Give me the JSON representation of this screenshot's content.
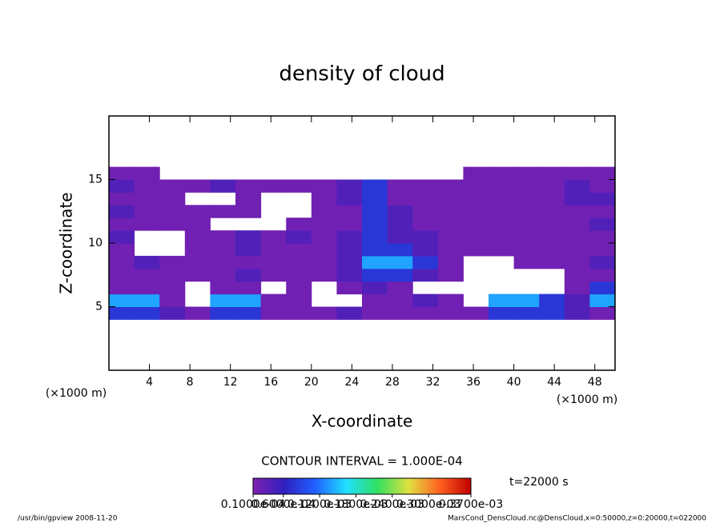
{
  "chart_data": {
    "type": "contour",
    "title": "density of cloud",
    "xlabel": "X-coordinate",
    "ylabel": "Z-coordinate",
    "xunit": "(×1000 m)",
    "xunit2": "(×1000 m)",
    "xlim": [
      0,
      50
    ],
    "ylim": [
      0,
      20
    ],
    "xticks": [
      4,
      8,
      12,
      16,
      20,
      24,
      28,
      32,
      36,
      40,
      44,
      48
    ],
    "yticks": [
      5,
      10,
      15
    ],
    "field": {
      "x": [
        1.25,
        3.75,
        6.25,
        8.75,
        11.25,
        13.75,
        16.25,
        18.75,
        21.25,
        23.75,
        26.25,
        28.75,
        31.25,
        33.75,
        36.25,
        38.75,
        41.25,
        43.75,
        46.25,
        48.75
      ],
      "z": [
        4.5,
        5.5,
        6.5,
        7.5,
        8.5,
        9.5,
        10.5,
        11.5,
        12.5,
        13.5,
        14.5,
        15.5
      ],
      "values": [
        [
          8e-05,
          8e-05,
          4e-05,
          2e-05,
          8e-05,
          8e-05,
          2e-05,
          2e-05,
          2e-05,
          4e-05,
          2e-05,
          2e-05,
          2e-05,
          2e-05,
          2e-05,
          8e-05,
          8e-05,
          8e-05,
          4e-05,
          2e-05
        ],
        [
          0.00014,
          0.00014,
          2e-05,
          null,
          0.00014,
          0.00014,
          2e-05,
          2e-05,
          null,
          null,
          2e-05,
          2e-05,
          4e-05,
          2e-05,
          null,
          0.00014,
          0.00014,
          8e-05,
          4e-05,
          0.00014
        ],
        [
          2e-05,
          2e-05,
          2e-05,
          null,
          2e-05,
          2e-05,
          null,
          2e-05,
          null,
          2e-05,
          4e-05,
          2e-05,
          null,
          null,
          null,
          null,
          null,
          null,
          2e-05,
          8e-05
        ],
        [
          2e-05,
          2e-05,
          2e-05,
          2e-05,
          2e-05,
          4e-05,
          2e-05,
          2e-05,
          2e-05,
          4e-05,
          8e-05,
          8e-05,
          4e-05,
          2e-05,
          null,
          null,
          null,
          null,
          2e-05,
          2e-05
        ],
        [
          2e-05,
          4e-05,
          2e-05,
          2e-05,
          2e-05,
          2e-05,
          2e-05,
          2e-05,
          2e-05,
          4e-05,
          0.00014,
          0.00014,
          8e-05,
          2e-05,
          null,
          null,
          2e-05,
          2e-05,
          2e-05,
          4e-05
        ],
        [
          2e-05,
          null,
          null,
          2e-05,
          2e-05,
          4e-05,
          2e-05,
          2e-05,
          2e-05,
          4e-05,
          8e-05,
          8e-05,
          4e-05,
          2e-05,
          2e-05,
          2e-05,
          2e-05,
          2e-05,
          2e-05,
          2e-05
        ],
        [
          4e-05,
          null,
          null,
          2e-05,
          2e-05,
          4e-05,
          2e-05,
          4e-05,
          2e-05,
          4e-05,
          8e-05,
          4e-05,
          4e-05,
          2e-05,
          2e-05,
          2e-05,
          2e-05,
          2e-05,
          2e-05,
          2e-05
        ],
        [
          2e-05,
          2e-05,
          2e-05,
          2e-05,
          null,
          null,
          null,
          2e-05,
          2e-05,
          2e-05,
          8e-05,
          4e-05,
          2e-05,
          2e-05,
          2e-05,
          2e-05,
          2e-05,
          2e-05,
          2e-05,
          4e-05
        ],
        [
          4e-05,
          2e-05,
          2e-05,
          2e-05,
          2e-05,
          2e-05,
          null,
          null,
          2e-05,
          2e-05,
          8e-05,
          4e-05,
          2e-05,
          2e-05,
          2e-05,
          2e-05,
          2e-05,
          2e-05,
          2e-05,
          2e-05
        ],
        [
          2e-05,
          2e-05,
          2e-05,
          null,
          null,
          2e-05,
          null,
          null,
          2e-05,
          4e-05,
          8e-05,
          2e-05,
          2e-05,
          2e-05,
          2e-05,
          2e-05,
          2e-05,
          2e-05,
          4e-05,
          4e-05
        ],
        [
          4e-05,
          2e-05,
          2e-05,
          2e-05,
          4e-05,
          2e-05,
          2e-05,
          2e-05,
          2e-05,
          4e-05,
          8e-05,
          2e-05,
          2e-05,
          2e-05,
          2e-05,
          2e-05,
          2e-05,
          2e-05,
          4e-05,
          2e-05
        ],
        [
          2e-05,
          2e-05,
          null,
          null,
          null,
          null,
          null,
          null,
          null,
          null,
          null,
          null,
          null,
          null,
          2e-05,
          2e-05,
          2e-05,
          2e-05,
          2e-05,
          2e-05
        ]
      ]
    },
    "colorbar": {
      "clim": [
        1e-05,
        0.00037
      ],
      "colormap": [
        "#8020b0",
        "#3020c0",
        "#2060ff",
        "#20e0ff",
        "#30e060",
        "#e0e040",
        "#ff6020",
        "#c00000"
      ],
      "ticks": [
        {
          "value": 1e-05,
          "label": "0.1000e-04"
        },
        {
          "value": 6e-05,
          "label": "0.6000e-04"
        },
        {
          "value": 0.00012,
          "label": "0.1200e-03"
        },
        {
          "value": 0.00018,
          "label": "0.1800e-03"
        },
        {
          "value": 0.00024,
          "label": "0.2400e-03"
        },
        {
          "value": 0.0003,
          "label": "0.3000e-03"
        },
        {
          "value": 0.00037,
          "label": "0.3700e-03"
        }
      ]
    },
    "contour_interval": "CONTOUR INTERVAL = 1.000E-04",
    "time_label": "t=22000 s",
    "footer_left": "/usr/bin/gpview   2008-11-20",
    "footer_right": "MarsCond_DensCloud.nc@DensCloud,x=0:50000,z=0:20000,t=022000"
  }
}
